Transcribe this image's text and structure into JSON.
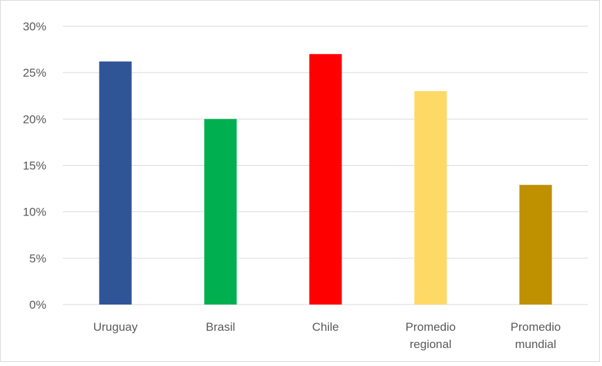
{
  "chart_data": {
    "type": "bar",
    "categories": [
      [
        "Uruguay"
      ],
      [
        "Brasil"
      ],
      [
        "Chile"
      ],
      [
        "Promedio",
        "regional"
      ],
      [
        "Promedio",
        "mundial"
      ]
    ],
    "values": [
      26.2,
      20.0,
      27.0,
      23.0,
      12.9
    ],
    "colors": [
      "#2F5597",
      "#00B050",
      "#FF0000",
      "#FFD966",
      "#BF9000"
    ],
    "ylim": [
      0,
      30
    ],
    "yticks": [
      0,
      5,
      10,
      15,
      20,
      25,
      30
    ],
    "ytick_labels": [
      "0%",
      "5%",
      "10%",
      "15%",
      "20%",
      "25%",
      "30%"
    ],
    "grid": true,
    "title": "",
    "xlabel": "",
    "ylabel": ""
  }
}
